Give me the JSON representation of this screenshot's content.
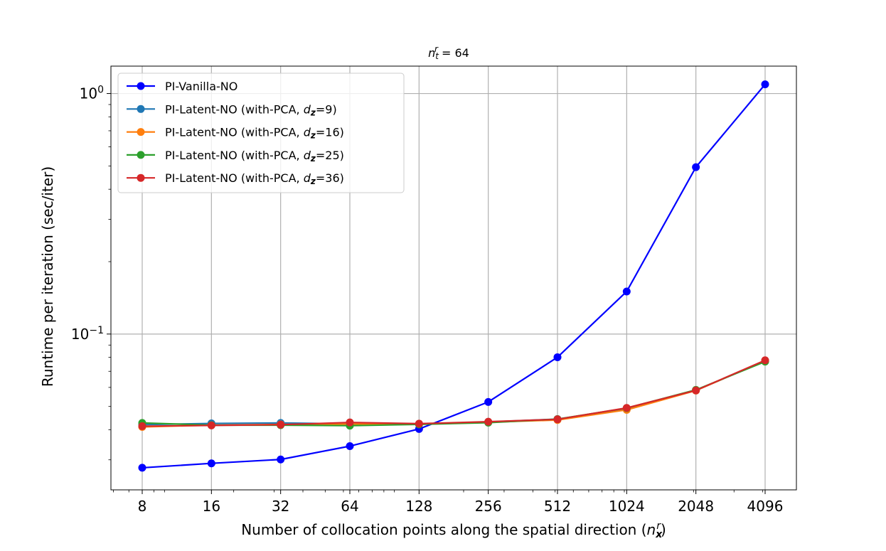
{
  "chart_data": {
    "type": "line",
    "title": "n_t^r = 64",
    "title_parts": {
      "base": "n",
      "sub": "t",
      "sup": "r",
      "rest": " = 64"
    },
    "xlabel": "Number of collocation points along the spatial direction (n_x^r)",
    "xlabel_parts": {
      "prefix": "Number of collocation points along the spatial direction (",
      "base": "n",
      "sub": "x",
      "sup": "r",
      "suffix": ")"
    },
    "ylabel": "Runtime per iteration (sec/iter)",
    "x_scale": "log2",
    "y_scale": "log10",
    "x": [
      8,
      16,
      32,
      64,
      128,
      256,
      512,
      1024,
      2048,
      4096
    ],
    "x_tick_labels": [
      "8",
      "16",
      "32",
      "64",
      "128",
      "256",
      "512",
      "1024",
      "2048",
      "4096"
    ],
    "y_ticks": [
      {
        "value": 1.0,
        "base": "10",
        "exp": "0"
      },
      {
        "value": 0.1,
        "base": "10",
        "exp": "−1"
      }
    ],
    "ylim": [
      0.0225,
      1.3
    ],
    "grid": true,
    "legend_position": "top-left",
    "series": [
      {
        "name": "PI-Vanilla-NO",
        "label_prefix": "PI-Vanilla-NO",
        "label_dz": "",
        "color": "#0000ff",
        "values": [
          0.0278,
          0.029,
          0.0301,
          0.0342,
          0.0403,
          0.0522,
          0.0801,
          0.1503,
          0.4942,
          1.092
        ]
      },
      {
        "name": "PI-Latent-NO (with-PCA, d_z=9)",
        "label_prefix": "PI-Latent-NO (with-PCA, ",
        "label_dz": "=9)",
        "color": "#1f77b4",
        "values": [
          0.042,
          0.0425,
          0.0427,
          0.0423,
          0.0423,
          0.0431,
          0.0443,
          0.0488,
          0.0583,
          0.0773
        ]
      },
      {
        "name": "PI-Latent-NO (with-PCA, d_z=16)",
        "label_prefix": "PI-Latent-NO (with-PCA, ",
        "label_dz": "=16)",
        "color": "#ff7f0e",
        "values": [
          0.0411,
          0.0418,
          0.0421,
          0.0422,
          0.0422,
          0.043,
          0.0439,
          0.0484,
          0.0582,
          0.0775
        ]
      },
      {
        "name": "PI-Latent-NO (with-PCA, d_z=25)",
        "label_prefix": "PI-Latent-NO (with-PCA, ",
        "label_dz": "=25)",
        "color": "#2ca02c",
        "values": [
          0.0427,
          0.0418,
          0.0418,
          0.0416,
          0.0421,
          0.0428,
          0.0443,
          0.0492,
          0.0586,
          0.0768
        ]
      },
      {
        "name": "PI-Latent-NO (with-PCA, d_z=36)",
        "label_prefix": "PI-Latent-NO (with-PCA, ",
        "label_dz": "=36)",
        "color": "#d62728",
        "values": [
          0.0414,
          0.0417,
          0.042,
          0.0429,
          0.0424,
          0.0432,
          0.0442,
          0.0493,
          0.0583,
          0.0778
        ]
      }
    ]
  }
}
